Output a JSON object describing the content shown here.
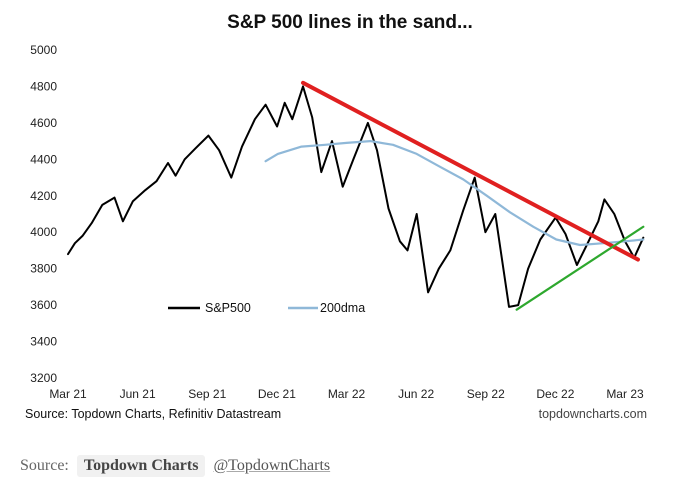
{
  "chart_data": {
    "type": "line",
    "title": "S&P 500 lines in the sand...",
    "xlabel": "",
    "ylabel": "",
    "x_tick_labels": [
      "Mar 21",
      "Jun 21",
      "Sep 21",
      "Dec 21",
      "Mar 22",
      "Jun 22",
      "Sep 22",
      "Dec 22",
      "Mar 23"
    ],
    "y_ticks": [
      3200,
      3400,
      3600,
      3800,
      4000,
      4200,
      4400,
      4600,
      4800,
      5000
    ],
    "ylim": [
      3200,
      5000
    ],
    "grid": false,
    "legend_position": "center-left",
    "series": [
      {
        "name": "S&P500",
        "color": "#000000",
        "x": [
          "2021-03-01",
          "2021-03-10",
          "2021-03-20",
          "2021-04-01",
          "2021-04-15",
          "2021-05-01",
          "2021-05-12",
          "2021-05-25",
          "2021-06-10",
          "2021-06-25",
          "2021-07-10",
          "2021-07-20",
          "2021-08-01",
          "2021-08-15",
          "2021-09-01",
          "2021-09-15",
          "2021-10-01",
          "2021-10-15",
          "2021-11-01",
          "2021-11-15",
          "2021-11-30",
          "2021-12-10",
          "2021-12-20",
          "2022-01-03",
          "2022-01-15",
          "2022-01-27",
          "2022-02-10",
          "2022-02-24",
          "2022-03-10",
          "2022-03-29",
          "2022-04-10",
          "2022-04-25",
          "2022-05-10",
          "2022-05-20",
          "2022-06-01",
          "2022-06-16",
          "2022-06-30",
          "2022-07-15",
          "2022-08-01",
          "2022-08-16",
          "2022-08-30",
          "2022-09-12",
          "2022-09-30",
          "2022-10-12",
          "2022-10-25",
          "2022-11-10",
          "2022-11-30",
          "2022-12-13",
          "2022-12-28",
          "2023-01-10",
          "2023-01-25",
          "2023-02-02",
          "2023-02-15",
          "2023-03-01",
          "2023-03-13",
          "2023-03-25"
        ],
        "values": [
          3880,
          3940,
          3980,
          4050,
          4150,
          4190,
          4060,
          4170,
          4230,
          4280,
          4380,
          4310,
          4400,
          4460,
          4530,
          4450,
          4300,
          4470,
          4620,
          4700,
          4580,
          4710,
          4620,
          4800,
          4630,
          4330,
          4500,
          4250,
          4400,
          4600,
          4450,
          4130,
          3950,
          3900,
          4100,
          3670,
          3800,
          3900,
          4120,
          4300,
          4000,
          4100,
          3590,
          3600,
          3800,
          3960,
          4080,
          3990,
          3820,
          3930,
          4060,
          4180,
          4100,
          3950,
          3860,
          3970
        ]
      },
      {
        "name": "200dma",
        "color": "#8fb8d8",
        "x": [
          "2021-11-15",
          "2021-12-01",
          "2022-01-01",
          "2022-02-01",
          "2022-03-01",
          "2022-04-01",
          "2022-05-01",
          "2022-06-01",
          "2022-07-01",
          "2022-08-01",
          "2022-09-01",
          "2022-10-01",
          "2022-11-01",
          "2022-12-01",
          "2023-01-01",
          "2023-02-01",
          "2023-03-01",
          "2023-03-25"
        ],
        "values": [
          4390,
          4430,
          4470,
          4480,
          4490,
          4500,
          4480,
          4430,
          4360,
          4290,
          4200,
          4110,
          4030,
          3960,
          3930,
          3940,
          3950,
          3960
        ]
      }
    ],
    "annotations": [
      {
        "type": "trendline",
        "color": "#e02020",
        "from": {
          "x": "2022-01-03",
          "y": 4820
        },
        "to": {
          "x": "2023-03-18",
          "y": 3850
        }
      },
      {
        "type": "trendline",
        "color": "#2ea82e",
        "from": {
          "x": "2022-10-10",
          "y": 3575
        },
        "to": {
          "x": "2023-03-25",
          "y": 4030
        }
      }
    ]
  },
  "footer": {
    "source_note": "Source: Topdown Charts, Refinitiv Datastream",
    "website": "topdowncharts.com"
  },
  "caption": {
    "label": "Source:",
    "chip": "Topdown Charts",
    "handle": "@TopdownCharts"
  }
}
